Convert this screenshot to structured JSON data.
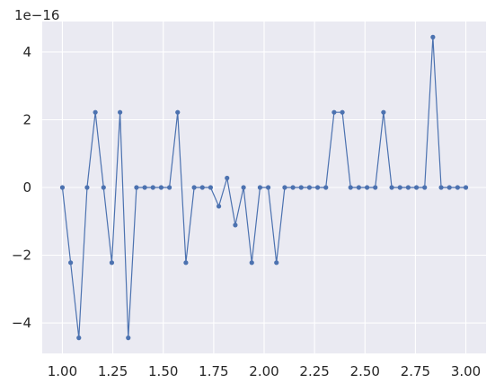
{
  "chart_data": {
    "type": "line",
    "title": "",
    "xlabel": "",
    "ylabel": "",
    "y_scale_label": "1e−16",
    "xlim": [
      0.9,
      3.1
    ],
    "ylim": [
      -4.9,
      4.9
    ],
    "x_ticks": [
      1.0,
      1.25,
      1.5,
      1.75,
      2.0,
      2.25,
      2.5,
      2.75,
      3.0
    ],
    "x_tick_labels": [
      "1.00",
      "1.25",
      "1.50",
      "1.75",
      "2.00",
      "2.25",
      "2.50",
      "2.75",
      "3.00"
    ],
    "y_ticks": [
      -4,
      -2,
      0,
      2,
      4
    ],
    "y_tick_labels": [
      "−4",
      "−2",
      "0",
      "2",
      "4"
    ],
    "grid": true,
    "colors": {
      "background": "#eaeaf2",
      "grid": "#ffffff",
      "line": "#4c72b0"
    },
    "series": [
      {
        "x": [
          1.0,
          1.0408,
          1.0816,
          1.1224,
          1.1633,
          1.2041,
          1.2449,
          1.2857,
          1.3265,
          1.3673,
          1.4082,
          1.449,
          1.4898,
          1.5306,
          1.5714,
          1.6122,
          1.6531,
          1.6939,
          1.7347,
          1.7755,
          1.8163,
          1.8571,
          1.898,
          1.9388,
          1.9796,
          2.0204,
          2.0612,
          2.102,
          2.1429,
          2.1837,
          2.2245,
          2.2653,
          2.3061,
          2.3469,
          2.3878,
          2.4286,
          2.4694,
          2.5102,
          2.551,
          2.5918,
          2.6327,
          2.6735,
          2.7143,
          2.7551,
          2.7959,
          2.8367,
          2.8776,
          2.9184,
          2.9592,
          3.0
        ],
        "y": [
          0,
          -2.22,
          -4.44,
          0,
          2.22,
          0,
          -2.22,
          2.22,
          -4.44,
          0,
          0,
          0,
          0,
          0,
          2.22,
          -2.22,
          0,
          0,
          0,
          -0.555,
          0.278,
          -1.11,
          0,
          -2.22,
          0,
          0,
          -2.22,
          0,
          0,
          0,
          0,
          0,
          0,
          2.22,
          2.22,
          0,
          0,
          0,
          0,
          2.22,
          0,
          0,
          0,
          0,
          0,
          4.44,
          0,
          0,
          0,
          0
        ]
      }
    ]
  }
}
